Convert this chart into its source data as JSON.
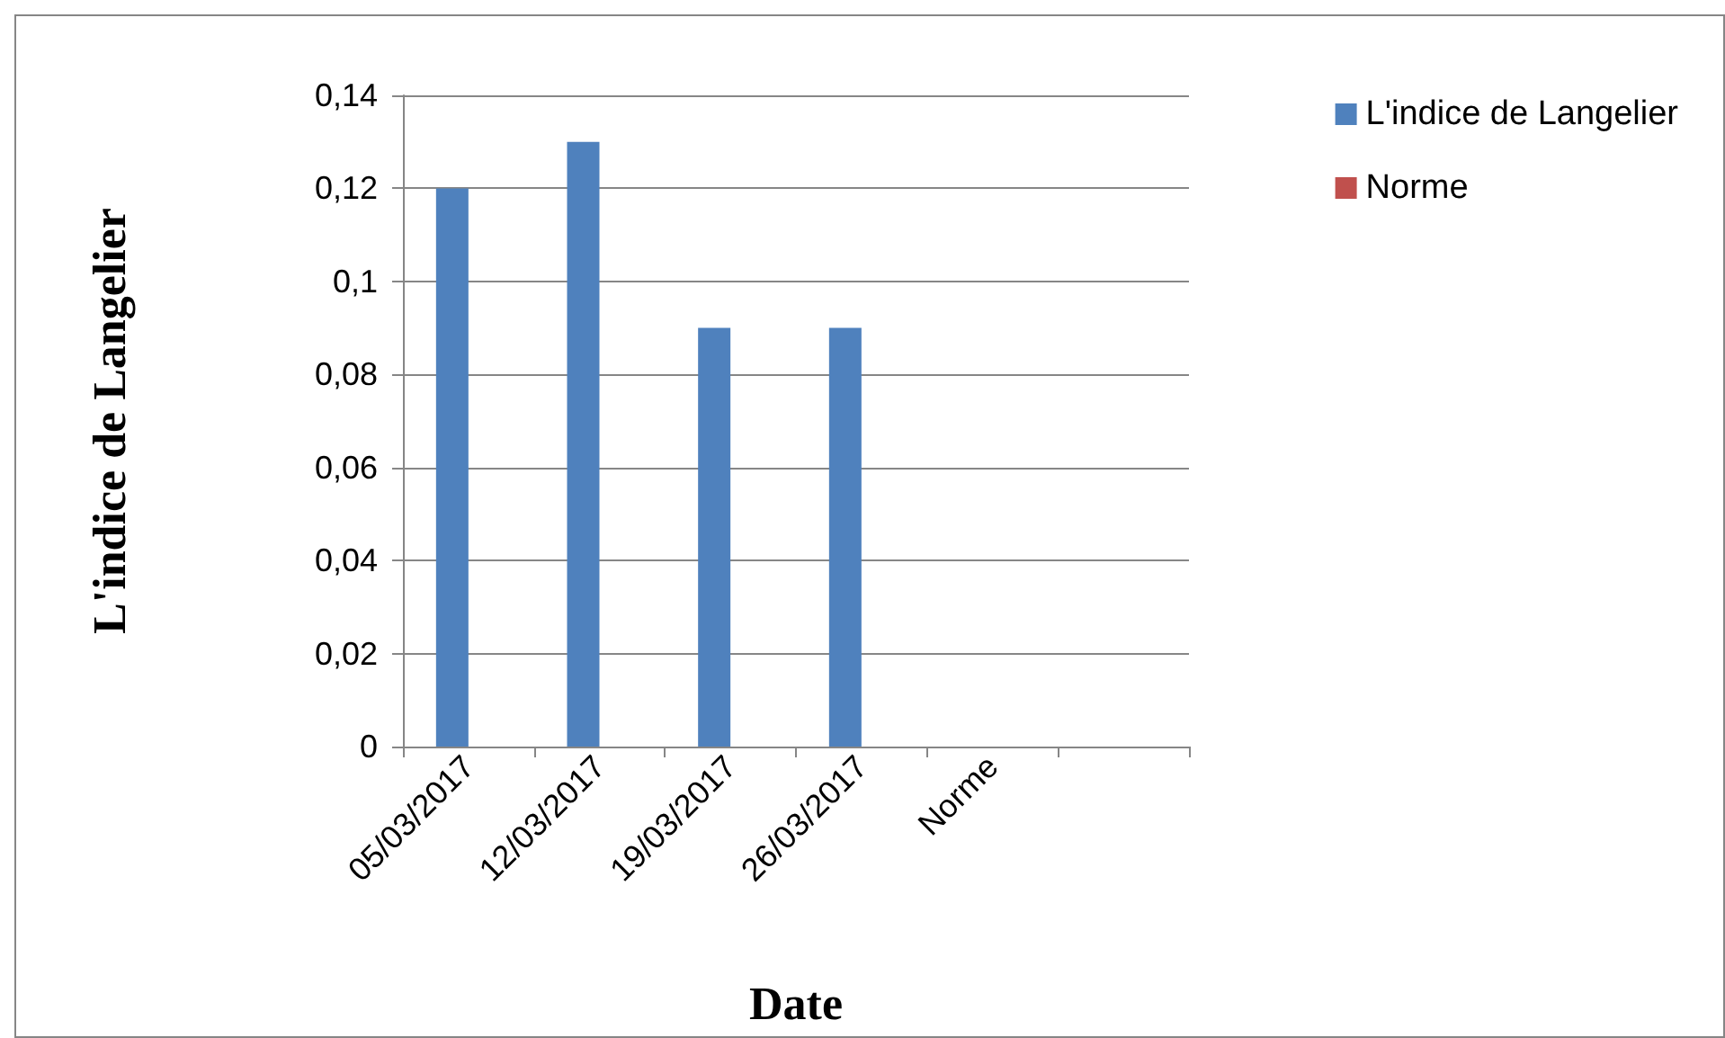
{
  "chart_data": {
    "type": "bar",
    "xlabel": "Date",
    "ylabel": "L'indice de Langelier",
    "categories": [
      "05/03/2017",
      "12/03/2017",
      "19/03/2017",
      "26/03/2017",
      "Norme",
      null
    ],
    "series": [
      {
        "name": "L'indice de Langelier",
        "color": "#4f81bd",
        "values": [
          0.12,
          0.13,
          0.09,
          0.09,
          null,
          null
        ]
      },
      {
        "name": "Norme",
        "color": "#c0504d",
        "values": [
          null,
          null,
          null,
          null,
          null,
          null
        ]
      }
    ],
    "ylim": [
      0,
      0.14
    ],
    "yticks": [
      0,
      {
        "value": 0.02,
        "label": "0,02"
      },
      {
        "value": 0.04,
        "label": "0,04"
      },
      {
        "value": 0.06,
        "label": "0,06"
      },
      {
        "value": 0.08,
        "label": "0,08"
      },
      {
        "value": 0.1,
        "label": "0,1"
      },
      {
        "value": 0.12,
        "label": "0,12"
      },
      {
        "value": 0.14,
        "label": "0,14"
      }
    ],
    "grid": "y",
    "legend": "right"
  }
}
